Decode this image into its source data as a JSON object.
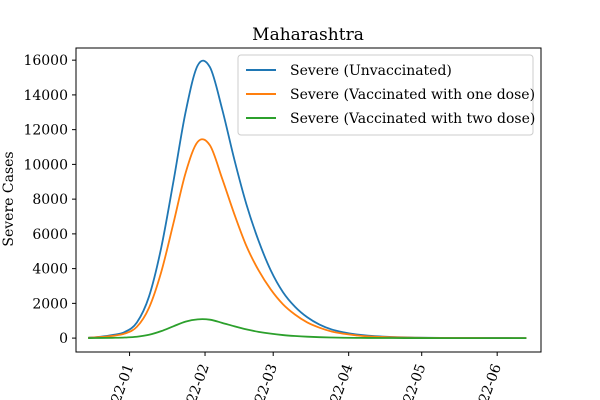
{
  "chart_data": {
    "type": "line",
    "title": "Maharashtra",
    "xlabel": "",
    "ylabel": "Severe Cases",
    "x_ticks": [
      "2022-01",
      "2022-02",
      "2022-03",
      "2022-04",
      "2022-05",
      "2022-06"
    ],
    "x_tick_labels": [
      "22-01",
      "22-02",
      "22-03",
      "22-04",
      "22-05",
      "22-06"
    ],
    "x": [
      "2021-12-15",
      "2021-12-20",
      "2021-12-25",
      "2021-12-30",
      "2022-01-04",
      "2022-01-09",
      "2022-01-14",
      "2022-01-19",
      "2022-01-24",
      "2022-01-29",
      "2022-02-03",
      "2022-02-08",
      "2022-02-13",
      "2022-02-18",
      "2022-02-23",
      "2022-02-28",
      "2022-03-05",
      "2022-03-10",
      "2022-03-15",
      "2022-03-20",
      "2022-03-25",
      "2022-03-30",
      "2022-04-04",
      "2022-04-09",
      "2022-04-19",
      "2022-04-29",
      "2022-05-09",
      "2022-05-19",
      "2022-05-29",
      "2022-06-08",
      "2022-06-13"
    ],
    "xlim": [
      "2021-12-10",
      "2022-06-19"
    ],
    "ylim": [
      -800,
      16700
    ],
    "y_ticks": [
      0,
      2000,
      4000,
      6000,
      8000,
      10000,
      12000,
      14000,
      16000
    ],
    "grid": false,
    "legend_position": "top-right",
    "series": [
      {
        "name": "Severe (Unvaccinated)",
        "color": "#1f77b4",
        "values": [
          20,
          80,
          180,
          350,
          900,
          2400,
          5200,
          9000,
          13000,
          15700,
          15600,
          13200,
          10300,
          7700,
          5600,
          3900,
          2650,
          1800,
          1200,
          780,
          500,
          330,
          210,
          140,
          60,
          25,
          10,
          4,
          2,
          1,
          0
        ]
      },
      {
        "name": "Severe (Vaccinated with one dose)",
        "color": "#ff7f0e",
        "values": [
          15,
          60,
          130,
          260,
          650,
          1750,
          3800,
          6600,
          9500,
          11300,
          11100,
          9200,
          7150,
          5300,
          3900,
          2800,
          1950,
          1350,
          900,
          600,
          380,
          250,
          160,
          100,
          45,
          18,
          7,
          3,
          1,
          0,
          0
        ]
      },
      {
        "name": "Severe (Vaccinated with two dose)",
        "color": "#2ca02c",
        "values": [
          2,
          8,
          18,
          35,
          80,
          190,
          400,
          680,
          950,
          1080,
          1060,
          880,
          680,
          500,
          360,
          255,
          175,
          120,
          80,
          52,
          34,
          22,
          14,
          9,
          4,
          2,
          1,
          0,
          0,
          0,
          0
        ]
      }
    ]
  }
}
